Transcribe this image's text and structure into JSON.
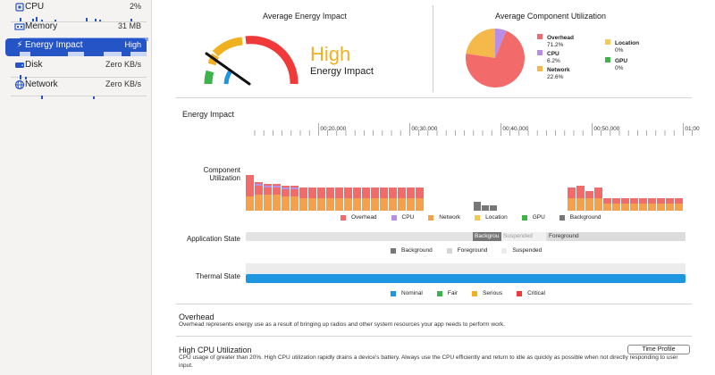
{
  "sidebar": {
    "gauges": [
      {
        "name": "CPU",
        "value": "2%",
        "icon": "cpu-icon"
      },
      {
        "name": "Memory",
        "value": "31 MB",
        "icon": "memory-icon"
      },
      {
        "name": "Energy Impact",
        "value": "High",
        "icon": "energy-icon",
        "selected": true
      },
      {
        "name": "Disk",
        "value": "Zero KB/s",
        "icon": "disk-icon"
      },
      {
        "name": "Network",
        "value": "Zero KB/s",
        "icon": "network-icon"
      }
    ]
  },
  "average_energy": {
    "title": "Average Energy Impact",
    "level": "High",
    "label": "Energy Impact",
    "level_color": "#f0b020"
  },
  "average_component": {
    "title": "Average Component Utilization",
    "slices": [
      {
        "name": "Overhead",
        "pct": "71.2%",
        "value": 71.2,
        "color": "#f26a6a"
      },
      {
        "name": "CPU",
        "pct": "6.2%",
        "value": 6.2,
        "color": "#b98ee6"
      },
      {
        "name": "Network",
        "pct": "22.6%",
        "value": 22.6,
        "color": "#f5b84a"
      },
      {
        "name": "Location",
        "pct": "0%",
        "value": 0,
        "color": "#f5c85a"
      },
      {
        "name": "GPU",
        "pct": "0%",
        "value": 0,
        "color": "#3cb44b"
      }
    ]
  },
  "timeline": {
    "title": "Energy Impact",
    "ticks": [
      "00:20.000",
      "00:30.000",
      "00:40.000",
      "00:50.000",
      "01:00"
    ],
    "component_label": "Component\nUtilization",
    "component_legend": [
      {
        "name": "Overhead",
        "color": "#f26a6a"
      },
      {
        "name": "CPU",
        "color": "#b98ee6"
      },
      {
        "name": "Network",
        "color": "#f5a04a"
      },
      {
        "name": "Location",
        "color": "#f5c85a"
      },
      {
        "name": "GPU",
        "color": "#3cb44b"
      },
      {
        "name": "Background",
        "color": "#777777"
      }
    ],
    "app_state_label": "Application State",
    "app_states": [
      "Backgrou",
      "Suspended",
      "Foreground"
    ],
    "app_legend": [
      {
        "name": "Background",
        "color": "#777777"
      },
      {
        "name": "Foreground",
        "color": "#d6d6d6"
      },
      {
        "name": "Suspended",
        "color": "#ececec"
      }
    ],
    "thermal_label": "Thermal State",
    "thermal_legend": [
      {
        "name": "Nominal",
        "color": "#1e96e0"
      },
      {
        "name": "Fair",
        "color": "#3cb44b"
      },
      {
        "name": "Serious",
        "color": "#f0b020"
      },
      {
        "name": "Critical",
        "color": "#f03a3a"
      }
    ]
  },
  "overhead": {
    "title": "Overhead",
    "text": "Overhead represents energy use as a result of bringing up radios and other system resources your app needs to perform work."
  },
  "high_cpu": {
    "title": "High CPU Utilization",
    "text": "CPU usage of greater than 20%. High CPU utilization rapidly drains a device's battery. Always use the CPU efficiently and return to idle as quickly as possible when not directly responding to user input.",
    "button": "Time Profile"
  }
}
